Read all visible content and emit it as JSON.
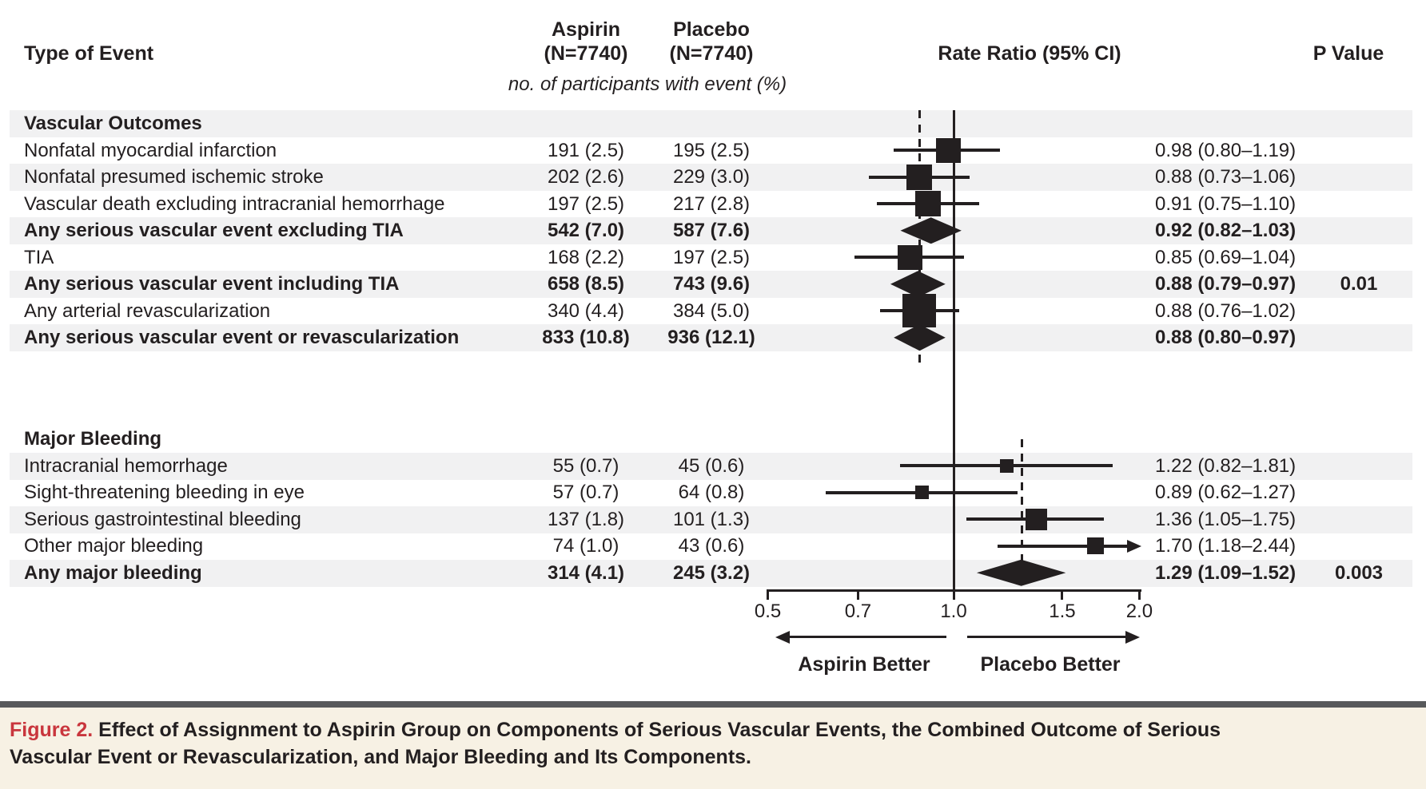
{
  "header": {
    "col_event": "Type of Event",
    "aspirin_line1": "Aspirin",
    "aspirin_line2": "(N=7740)",
    "placebo_line1": "Placebo",
    "placebo_line2": "(N=7740)",
    "col_rate_ratio": "Rate Ratio (95% CI)",
    "col_p_value": "P Value",
    "subheader": "no. of participants with event (%)"
  },
  "axis": {
    "tick_labels": [
      "0.5",
      "0.7",
      "1.0",
      "1.5",
      "2.0"
    ],
    "left_label": "Aspirin Better",
    "right_label": "Placebo Better"
  },
  "caption": {
    "tag": "Figure 2.",
    "text": "Effect of Assignment to Aspirin Group on Components of Serious Vascular Events, the Combined Outcome of Serious Vascular Event or Revascularization, and Major Bleeding and Its Components."
  },
  "colors": {
    "ink": "#231f20",
    "stripe": "#f1f1f2",
    "accent_red": "#c9363d",
    "caption_bg": "#f7f1e4",
    "caption_bar": "#58595b"
  },
  "rows": [
    {
      "type": "section",
      "label": "Vascular Outcomes",
      "stripe": true
    },
    {
      "type": "item",
      "label": "Nonfatal myocardial infarction",
      "aspirin": "191 (2.5)",
      "placebo": "195 (2.5)",
      "rr_text": "0.98 (0.80–1.19)",
      "p": "",
      "bold": false,
      "stripe": false,
      "marker": "square",
      "rr": 0.98,
      "lo": 0.8,
      "hi": 1.19,
      "size": 31
    },
    {
      "type": "item",
      "label": "Nonfatal presumed ischemic stroke",
      "aspirin": "202 (2.6)",
      "placebo": "229 (3.0)",
      "rr_text": "0.88 (0.73–1.06)",
      "p": "",
      "bold": false,
      "stripe": true,
      "marker": "square",
      "rr": 0.88,
      "lo": 0.73,
      "hi": 1.06,
      "size": 32
    },
    {
      "type": "item",
      "label": "Vascular death excluding intracranial hemorrhage",
      "aspirin": "197 (2.5)",
      "placebo": "217 (2.8)",
      "rr_text": "0.91 (0.75–1.10)",
      "p": "",
      "bold": false,
      "stripe": false,
      "marker": "square",
      "rr": 0.91,
      "lo": 0.75,
      "hi": 1.1,
      "size": 32
    },
    {
      "type": "item",
      "label": "Any serious vascular event excluding TIA",
      "aspirin": "542 (7.0)",
      "placebo": "587 (7.6)",
      "rr_text": "0.92 (0.82–1.03)",
      "p": "",
      "bold": true,
      "stripe": true,
      "marker": "diamond",
      "rr": 0.92,
      "lo": 0.82,
      "hi": 1.03,
      "size": 33
    },
    {
      "type": "item",
      "label": "TIA",
      "aspirin": "168 (2.2)",
      "placebo": "197 (2.5)",
      "rr_text": "0.85 (0.69–1.04)",
      "p": "",
      "bold": false,
      "stripe": false,
      "marker": "square",
      "rr": 0.85,
      "lo": 0.69,
      "hi": 1.04,
      "size": 31
    },
    {
      "type": "item",
      "label": "Any serious vascular event including TIA",
      "aspirin": "658 (8.5)",
      "placebo": "743 (9.6)",
      "rr_text": "0.88 (0.79–0.97)",
      "p": "0.01",
      "bold": true,
      "stripe": true,
      "marker": "diamond",
      "rr": 0.88,
      "lo": 0.79,
      "hi": 0.97,
      "size": 33
    },
    {
      "type": "item",
      "label": "Any arterial revascularization",
      "aspirin": "340 (4.4)",
      "placebo": "384 (5.0)",
      "rr_text": "0.88 (0.76–1.02)",
      "p": "",
      "bold": false,
      "stripe": false,
      "marker": "square",
      "rr": 0.88,
      "lo": 0.76,
      "hi": 1.02,
      "size": 42
    },
    {
      "type": "item",
      "label": "Any serious vascular event or revascularization",
      "aspirin": "833 (10.8)",
      "placebo": "936 (12.1)",
      "rr_text": "0.88 (0.80–0.97)",
      "p": "",
      "bold": true,
      "stripe": true,
      "marker": "diamond",
      "rr": 0.88,
      "lo": 0.8,
      "hi": 0.97,
      "size": 33
    },
    {
      "type": "gap"
    },
    {
      "type": "section",
      "label": "Major Bleeding",
      "stripe": false
    },
    {
      "type": "item",
      "label": "Intracranial hemorrhage",
      "aspirin": "55 (0.7)",
      "placebo": "45 (0.6)",
      "rr_text": "1.22 (0.82–1.81)",
      "p": "",
      "bold": false,
      "stripe": true,
      "marker": "square",
      "rr": 1.22,
      "lo": 0.82,
      "hi": 1.81,
      "size": 17
    },
    {
      "type": "item",
      "label": "Sight-threatening bleeding in eye",
      "aspirin": "57 (0.7)",
      "placebo": "64 (0.8)",
      "rr_text": "0.89 (0.62–1.27)",
      "p": "",
      "bold": false,
      "stripe": false,
      "marker": "square",
      "rr": 0.89,
      "lo": 0.62,
      "hi": 1.27,
      "size": 17
    },
    {
      "type": "item",
      "label": "Serious gastrointestinal bleeding",
      "aspirin": "137 (1.8)",
      "placebo": "101 (1.3)",
      "rr_text": "1.36 (1.05–1.75)",
      "p": "",
      "bold": false,
      "stripe": true,
      "marker": "square",
      "rr": 1.36,
      "lo": 1.05,
      "hi": 1.75,
      "size": 27
    },
    {
      "type": "item",
      "label": "Other major bleeding",
      "aspirin": "74 (1.0)",
      "placebo": "43 (0.6)",
      "rr_text": "1.70 (1.18–2.44)",
      "p": "",
      "bold": false,
      "stripe": false,
      "marker": "square",
      "rr": 1.7,
      "lo": 1.18,
      "hi": 2.44,
      "size": 21,
      "arrow_hi": true
    },
    {
      "type": "item",
      "label": "Any major bleeding",
      "aspirin": "314 (4.1)",
      "placebo": "245 (3.2)",
      "rr_text": "1.29 (1.09–1.52)",
      "p": "0.003",
      "bold": true,
      "stripe": true,
      "marker": "diamond",
      "rr": 1.29,
      "lo": 1.09,
      "hi": 1.52,
      "size": 33
    }
  ],
  "chart_data": {
    "type": "forest",
    "title": "Rate Ratio (95% CI)",
    "xscale": "log",
    "xticks": [
      0.5,
      0.7,
      1.0,
      1.5,
      2.0
    ],
    "xlim": [
      0.5,
      2.0
    ],
    "reference_line": 1.0,
    "dashed_reference_lines": [
      {
        "value": 0.88,
        "section": "Vascular Outcomes"
      },
      {
        "value": 1.29,
        "section": "Major Bleeding"
      }
    ],
    "direction_labels": {
      "left": "Aspirin Better",
      "right": "Placebo Better"
    },
    "points": [
      {
        "label": "Nonfatal myocardial infarction",
        "rr": 0.98,
        "ci_low": 0.8,
        "ci_high": 1.19,
        "marker": "square"
      },
      {
        "label": "Nonfatal presumed ischemic stroke",
        "rr": 0.88,
        "ci_low": 0.73,
        "ci_high": 1.06,
        "marker": "square"
      },
      {
        "label": "Vascular death excluding intracranial hemorrhage",
        "rr": 0.91,
        "ci_low": 0.75,
        "ci_high": 1.1,
        "marker": "square"
      },
      {
        "label": "Any serious vascular event excluding TIA",
        "rr": 0.92,
        "ci_low": 0.82,
        "ci_high": 1.03,
        "marker": "diamond"
      },
      {
        "label": "TIA",
        "rr": 0.85,
        "ci_low": 0.69,
        "ci_high": 1.04,
        "marker": "square"
      },
      {
        "label": "Any serious vascular event including TIA",
        "rr": 0.88,
        "ci_low": 0.79,
        "ci_high": 0.97,
        "marker": "diamond",
        "p_value": 0.01
      },
      {
        "label": "Any arterial revascularization",
        "rr": 0.88,
        "ci_low": 0.76,
        "ci_high": 1.02,
        "marker": "square"
      },
      {
        "label": "Any serious vascular event or revascularization",
        "rr": 0.88,
        "ci_low": 0.8,
        "ci_high": 0.97,
        "marker": "diamond"
      },
      {
        "label": "Intracranial hemorrhage",
        "rr": 1.22,
        "ci_low": 0.82,
        "ci_high": 1.81,
        "marker": "square"
      },
      {
        "label": "Sight-threatening bleeding in eye",
        "rr": 0.89,
        "ci_low": 0.62,
        "ci_high": 1.27,
        "marker": "square"
      },
      {
        "label": "Serious gastrointestinal bleeding",
        "rr": 1.36,
        "ci_low": 1.05,
        "ci_high": 1.75,
        "marker": "square"
      },
      {
        "label": "Other major bleeding",
        "rr": 1.7,
        "ci_low": 1.18,
        "ci_high": 2.44,
        "marker": "square",
        "ci_high_clipped": true
      },
      {
        "label": "Any major bleeding",
        "rr": 1.29,
        "ci_low": 1.09,
        "ci_high": 1.52,
        "marker": "diamond",
        "p_value": 0.003
      }
    ]
  }
}
